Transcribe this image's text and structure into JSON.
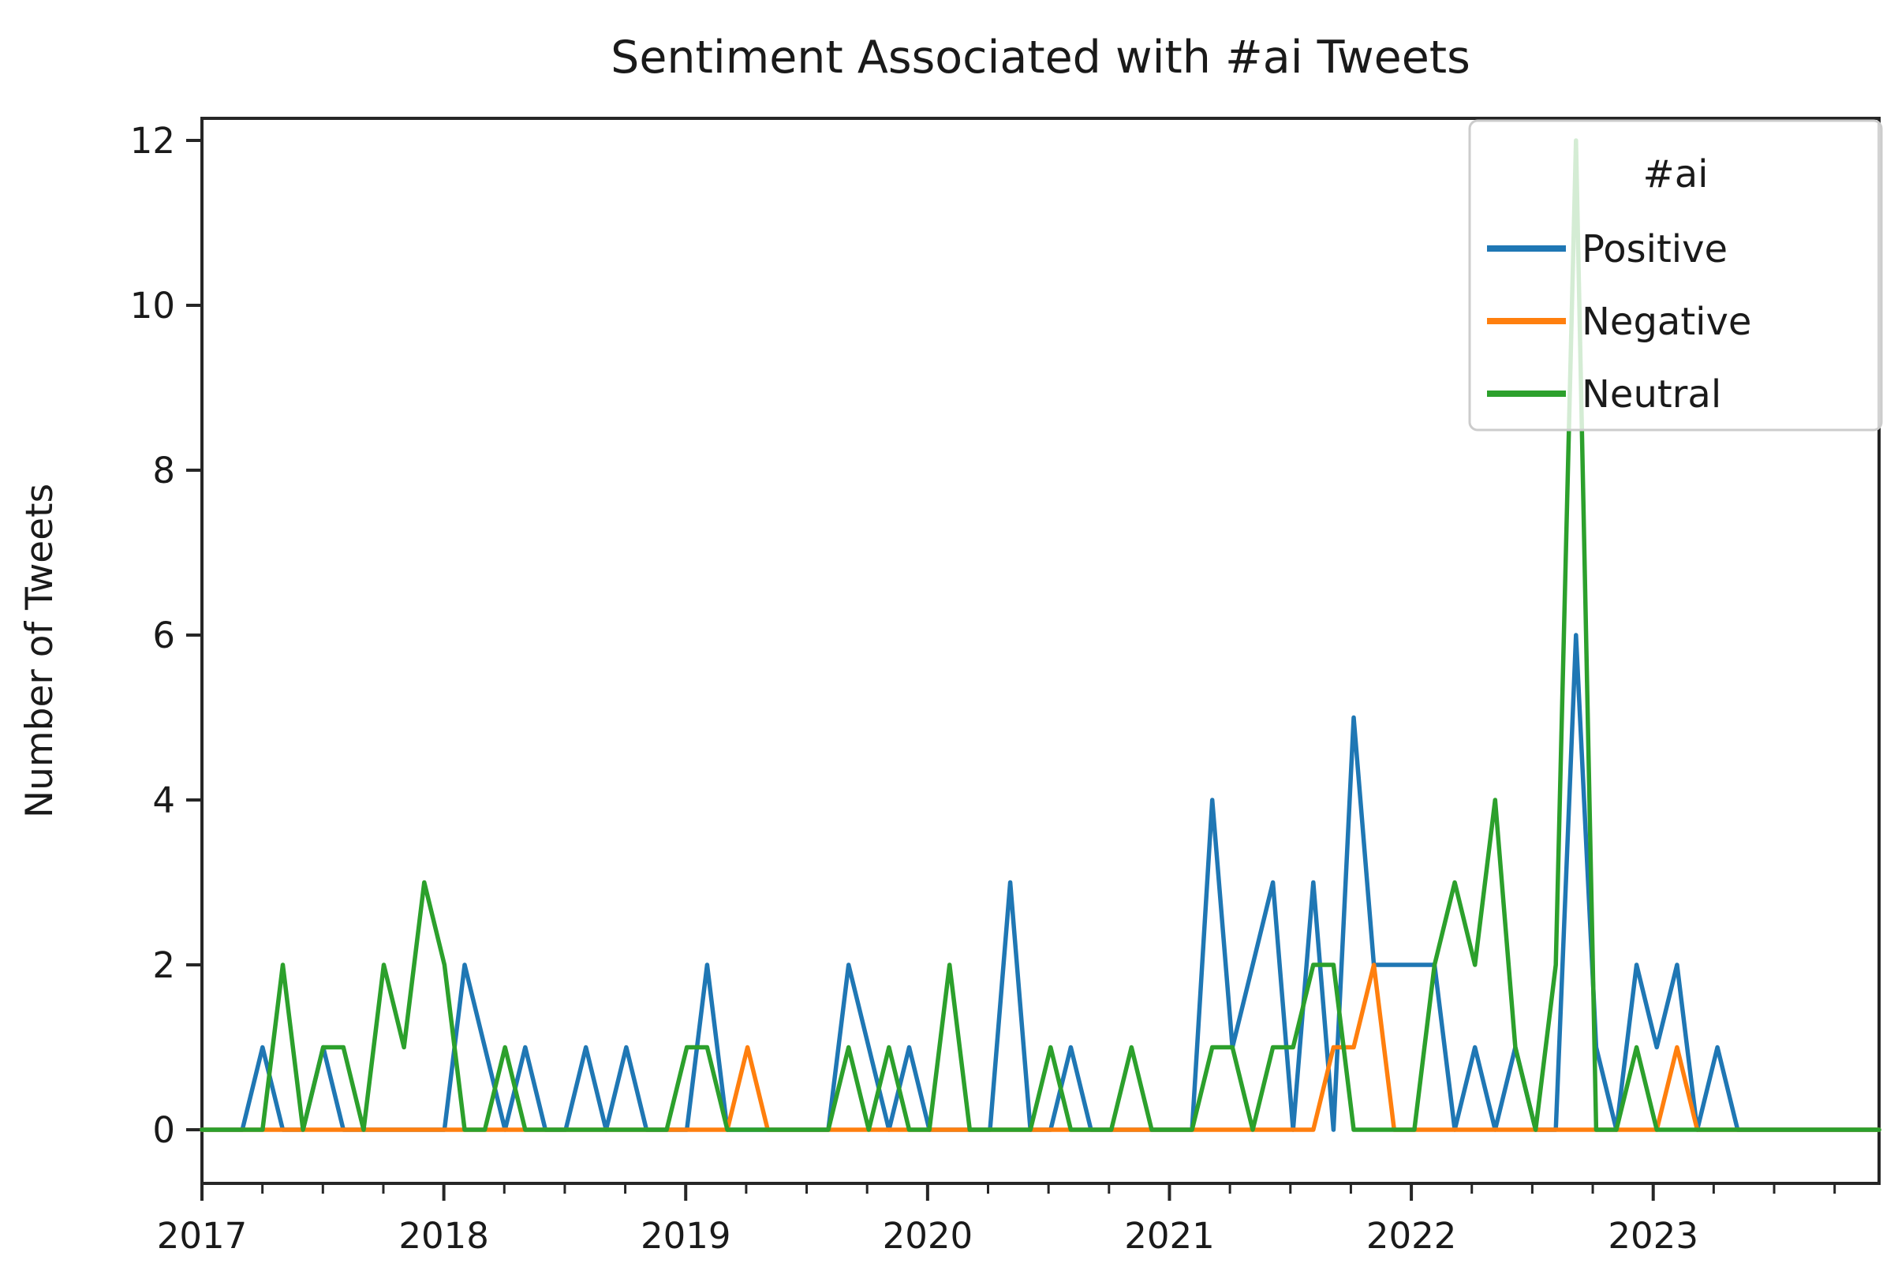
{
  "title": "Sentiment Associated with #ai Tweets",
  "y_axis": {
    "label": "Number of Tweets",
    "tick_labels": [
      "0",
      "2",
      "4",
      "6",
      "8",
      "10",
      "12"
    ],
    "tick_values": [
      0,
      2,
      4,
      6,
      8,
      10,
      12
    ]
  },
  "x_axis": {
    "tick_labels": [
      "2017",
      "2018",
      "2019",
      "2020",
      "2021",
      "2022",
      "2023"
    ],
    "minor_ticks_per_year": 3
  },
  "legend": {
    "title": "#ai",
    "entries": [
      {
        "label": "Positive",
        "color": "#1f77b4"
      },
      {
        "label": "Negative",
        "color": "#ff7f0e"
      },
      {
        "label": "Neutral",
        "color": "#2ca02c"
      }
    ]
  },
  "colors": {
    "positive": "#1f77b4",
    "negative": "#ff7f0e",
    "neutral": "#2ca02c",
    "axis": "#262626",
    "legend_border": "#cccccc"
  },
  "chart_data": {
    "type": "line",
    "title": "Sentiment Associated with #ai Tweets",
    "xlabel": "",
    "ylabel": "Number of Tweets",
    "ylim": [
      -0.65,
      12.3
    ],
    "x_range_years": [
      2017,
      2024
    ],
    "grid": false,
    "legend_position": "upper right",
    "months": [
      "2017-01",
      "2017-02",
      "2017-03",
      "2017-04",
      "2017-05",
      "2017-06",
      "2017-07",
      "2017-08",
      "2017-09",
      "2017-10",
      "2017-11",
      "2017-12",
      "2018-01",
      "2018-02",
      "2018-03",
      "2018-04",
      "2018-05",
      "2018-06",
      "2018-07",
      "2018-08",
      "2018-09",
      "2018-10",
      "2018-11",
      "2018-12",
      "2019-01",
      "2019-02",
      "2019-03",
      "2019-04",
      "2019-05",
      "2019-06",
      "2019-07",
      "2019-08",
      "2019-09",
      "2019-10",
      "2019-11",
      "2019-12",
      "2020-01",
      "2020-02",
      "2020-03",
      "2020-04",
      "2020-05",
      "2020-06",
      "2020-07",
      "2020-08",
      "2020-09",
      "2020-10",
      "2020-11",
      "2020-12",
      "2021-01",
      "2021-02",
      "2021-03",
      "2021-04",
      "2021-05",
      "2021-06",
      "2021-07",
      "2021-08",
      "2021-09",
      "2021-10",
      "2021-11",
      "2021-12",
      "2022-01",
      "2022-02",
      "2022-03",
      "2022-04",
      "2022-05",
      "2022-06",
      "2022-07",
      "2022-08",
      "2022-09",
      "2022-10",
      "2022-11",
      "2022-12",
      "2023-01",
      "2023-02",
      "2023-03",
      "2023-04",
      "2023-05",
      "2023-06",
      "2023-07",
      "2023-08",
      "2023-09",
      "2023-10",
      "2023-11",
      "2023-12"
    ],
    "series": [
      {
        "name": "Positive",
        "color": "#1f77b4",
        "values": [
          0,
          0,
          0,
          1,
          0,
          0,
          1,
          0,
          0,
          0,
          0,
          0,
          0,
          2,
          1,
          0,
          1,
          0,
          0,
          1,
          0,
          1,
          0,
          0,
          0,
          2,
          0,
          0,
          0,
          0,
          0,
          0,
          2,
          1,
          0,
          1,
          0,
          0,
          0,
          0,
          3,
          0,
          0,
          1,
          0,
          0,
          0,
          0,
          0,
          0,
          4,
          1,
          2,
          3,
          0,
          3,
          0,
          5,
          2,
          2,
          2,
          2,
          0,
          1,
          0,
          1,
          0,
          0,
          6,
          1,
          0,
          2,
          1,
          2,
          0,
          1,
          0,
          0,
          0,
          0,
          0,
          0,
          0,
          0
        ]
      },
      {
        "name": "Negative",
        "color": "#ff7f0e",
        "values": [
          0,
          0,
          0,
          0,
          0,
          0,
          0,
          0,
          0,
          0,
          0,
          0,
          0,
          0,
          0,
          0,
          0,
          0,
          0,
          0,
          0,
          0,
          0,
          0,
          0,
          0,
          0,
          1,
          0,
          0,
          0,
          0,
          0,
          0,
          0,
          0,
          0,
          0,
          0,
          0,
          0,
          0,
          0,
          0,
          0,
          0,
          0,
          0,
          0,
          0,
          0,
          0,
          0,
          0,
          0,
          0,
          1,
          1,
          2,
          0,
          0,
          0,
          0,
          0,
          0,
          0,
          0,
          0,
          0,
          0,
          0,
          0,
          0,
          1,
          0,
          0,
          0,
          0,
          0,
          0,
          0,
          0,
          0,
          0
        ]
      },
      {
        "name": "Neutral",
        "color": "#2ca02c",
        "values": [
          0,
          0,
          0,
          0,
          2,
          0,
          1,
          1,
          0,
          2,
          1,
          3,
          2,
          0,
          0,
          1,
          0,
          0,
          0,
          0,
          0,
          0,
          0,
          0,
          1,
          1,
          0,
          0,
          0,
          0,
          0,
          0,
          1,
          0,
          1,
          0,
          0,
          2,
          0,
          0,
          0,
          0,
          1,
          0,
          0,
          0,
          1,
          0,
          0,
          0,
          1,
          1,
          0,
          1,
          1,
          2,
          2,
          0,
          0,
          0,
          0,
          2,
          3,
          2,
          4,
          1,
          0,
          2,
          12,
          0,
          0,
          1,
          0,
          0,
          0,
          0,
          0,
          0,
          0,
          0,
          0,
          0,
          0,
          0
        ]
      }
    ]
  }
}
